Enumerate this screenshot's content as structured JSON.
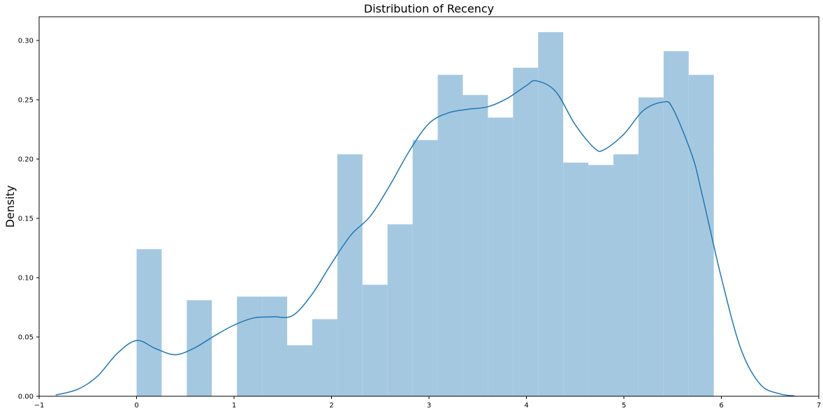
{
  "chart_data": {
    "type": "bar",
    "title": "Distribution of Recency",
    "xlabel": "",
    "ylabel": "Density",
    "xlim": [
      -1.0,
      7.0
    ],
    "ylim": [
      0.0,
      0.32
    ],
    "xticks": [
      -1,
      0,
      1,
      2,
      3,
      4,
      5,
      6,
      7
    ],
    "xtick_labels": [
      "−1",
      "0",
      "1",
      "2",
      "3",
      "4",
      "5",
      "6",
      "7"
    ],
    "yticks": [
      0.0,
      0.05,
      0.1,
      0.15,
      0.2,
      0.25,
      0.3
    ],
    "ytick_labels": [
      "0.00",
      "0.05",
      "0.10",
      "0.15",
      "0.20",
      "0.25",
      "0.30"
    ],
    "grid": false,
    "legend": "none",
    "colors": {
      "bar_fill": "#a5c8e1",
      "kde_line": "#1f77b4",
      "axes": "#000000",
      "background": "#ffffff"
    },
    "histogram": {
      "bin_edges": [
        0.0,
        0.2575,
        0.515,
        0.7725,
        1.03,
        1.2875,
        1.545,
        1.8025,
        2.06,
        2.3175,
        2.575,
        2.8325,
        3.09,
        3.3475,
        3.605,
        3.8625,
        4.12,
        4.3775,
        4.635,
        4.8925,
        5.15,
        5.4075,
        5.665,
        5.9225
      ],
      "densities": [
        0.124,
        0.0,
        0.081,
        0.0,
        0.084,
        0.084,
        0.043,
        0.065,
        0.204,
        0.094,
        0.145,
        0.216,
        0.271,
        0.254,
        0.235,
        0.277,
        0.307,
        0.197,
        0.195,
        0.204,
        0.252,
        0.291,
        0.271
      ]
    },
    "kde": {
      "x": [
        -0.83,
        -0.6,
        -0.4,
        -0.2,
        0.0,
        0.2,
        0.4,
        0.6,
        0.8,
        1.0,
        1.2,
        1.4,
        1.6,
        1.8,
        2.0,
        2.2,
        2.4,
        2.6,
        2.8,
        3.0,
        3.2,
        3.4,
        3.6,
        3.8,
        4.0,
        4.1,
        4.3,
        4.5,
        4.7,
        4.8,
        5.0,
        5.2,
        5.4,
        5.5,
        5.7,
        5.8,
        6.0,
        6.2,
        6.4,
        6.6,
        6.75
      ],
      "y": [
        0.001,
        0.006,
        0.017,
        0.036,
        0.047,
        0.04,
        0.035,
        0.041,
        0.051,
        0.06,
        0.066,
        0.067,
        0.068,
        0.086,
        0.112,
        0.136,
        0.152,
        0.178,
        0.207,
        0.23,
        0.239,
        0.242,
        0.244,
        0.251,
        0.262,
        0.266,
        0.257,
        0.229,
        0.209,
        0.208,
        0.221,
        0.241,
        0.248,
        0.243,
        0.203,
        0.171,
        0.1,
        0.04,
        0.01,
        0.002,
        0.0004
      ]
    }
  }
}
